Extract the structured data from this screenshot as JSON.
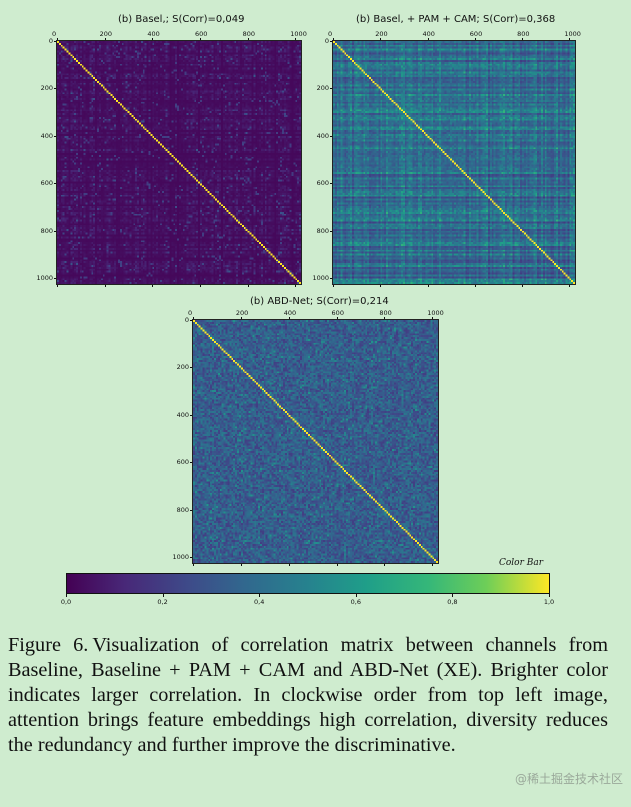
{
  "chart_data": [
    {
      "type": "heatmap",
      "title": "(b) Basel,; S(Corr)=0,049",
      "x_ticks": [
        "0",
        "200",
        "400",
        "600",
        "800",
        "1000"
      ],
      "y_ticks": [
        "0",
        "200",
        "400",
        "600",
        "800",
        "1000"
      ],
      "xlim": [
        0,
        1024
      ],
      "ylim": [
        0,
        1024
      ],
      "score": 0.049
    },
    {
      "type": "heatmap",
      "title": "(b) Basel, + PAM + CAM; S(Corr)=0,368",
      "x_ticks": [
        "0",
        "200",
        "400",
        "600",
        "800",
        "1000"
      ],
      "y_ticks": [
        "0",
        "200",
        "400",
        "600",
        "800",
        "1000"
      ],
      "xlim": [
        0,
        1024
      ],
      "ylim": [
        0,
        1024
      ],
      "score": 0.368
    },
    {
      "type": "heatmap",
      "title": "(b) ABD-Net; S(Corr)=0,214",
      "x_ticks": [
        "0",
        "200",
        "400",
        "600",
        "800",
        "1000"
      ],
      "y_ticks": [
        "0",
        "200",
        "400",
        "600",
        "800",
        "1000"
      ],
      "xlim": [
        0,
        1024
      ],
      "ylim": [
        0,
        1024
      ],
      "score": 0.214
    }
  ],
  "colorbar": {
    "label": "Color Bar",
    "ticks": [
      "0,0",
      "0,2",
      "0,4",
      "0,6",
      "0,8",
      "1,0"
    ],
    "range": [
      0,
      1
    ],
    "colormap": "viridis"
  },
  "caption": {
    "label": "Figure 6.",
    "text": "Visualization of correlation matrix between channels from Baseline, Baseline + PAM + CAM and ABD-Net (XE). Brighter color indicates larger correlation. In clockwise order from top left image, attention brings feature embeddings high correlation, diversity reduces the redundancy and further improve the discriminative."
  },
  "watermark": "@稀土掘金技术社区",
  "colors": {
    "background": "#cfeccf",
    "viridis_low": "#440154",
    "viridis_high": "#fde725"
  }
}
